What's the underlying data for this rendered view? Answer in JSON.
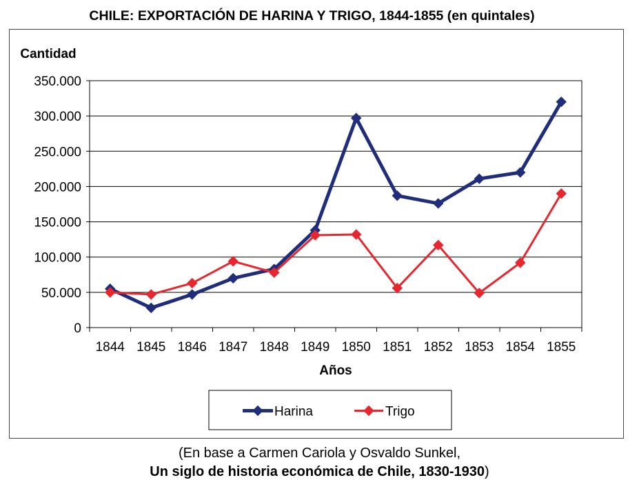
{
  "title": "CHILE: EXPORTACIÓN DE HARINA Y TRIGO, 1844-1855 (en quintales)",
  "caption": {
    "line1": "(En base a Carmen Cariola y Osvaldo Sunkel,",
    "line2_bold": "Un siglo de historia económica de Chile, 1830-1930",
    "line2_end": ")"
  },
  "chart_data": {
    "type": "line",
    "ylabel": "Cantidad",
    "xlabel": "Años",
    "categories": [
      "1844",
      "1845",
      "1846",
      "1847",
      "1848",
      "1849",
      "1850",
      "1851",
      "1852",
      "1853",
      "1854",
      "1855"
    ],
    "ylim": [
      0,
      350000
    ],
    "yticks": [
      0,
      50000,
      100000,
      150000,
      200000,
      250000,
      300000,
      350000
    ],
    "ytick_labels": [
      "0",
      "50.000",
      "100.000",
      "150.000",
      "200.000",
      "250.000",
      "300.000",
      "350.000"
    ],
    "grid": true,
    "legend_position": "bottom",
    "series": [
      {
        "name": "Harina",
        "color": "#1f2d7a",
        "values": [
          55000,
          28000,
          47000,
          70000,
          83000,
          138000,
          297000,
          187000,
          176000,
          211000,
          220000,
          320000
        ]
      },
      {
        "name": "Trigo",
        "color": "#e8262e",
        "values": [
          50000,
          47000,
          63000,
          94000,
          78000,
          131000,
          132000,
          56000,
          117000,
          49000,
          92000,
          190000
        ]
      }
    ]
  }
}
